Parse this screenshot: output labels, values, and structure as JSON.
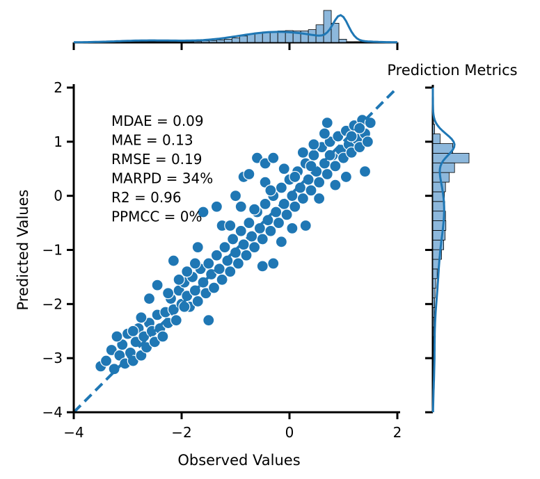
{
  "chart_data": {
    "type": "scatter",
    "title": "Prediction Metrics",
    "xlabel": "Observed Values",
    "ylabel": "Predicted Values",
    "xlim": [
      -4,
      2
    ],
    "ylim": [
      -4,
      2
    ],
    "xticks": [
      -4,
      -2,
      0,
      2
    ],
    "yticks": [
      -4,
      -3,
      -2,
      -1,
      0,
      1,
      2
    ],
    "xtick_labels": [
      "−4",
      "−2",
      "0",
      "2"
    ],
    "ytick_labels": [
      "−4",
      "−3",
      "−2",
      "−1",
      "0",
      "1",
      "2"
    ],
    "identity_line": {
      "from": [
        -4,
        -4
      ],
      "to": [
        2,
        2
      ],
      "style": "dashed"
    },
    "metrics": [
      "MDAE = 0.09",
      "MAE = 0.13",
      "RMSE = 0.19",
      "MARPD = 34%",
      "R2 = 0.96",
      "PPMCC = 0%"
    ],
    "colors": {
      "points": "#1f77b4",
      "hist_fill": "#8db8dc",
      "kde": "#1f77b4",
      "line": "#1f77b4"
    },
    "points": [
      [
        -3.5,
        -3.15
      ],
      [
        -3.4,
        -3.05
      ],
      [
        -3.3,
        -2.85
      ],
      [
        -3.25,
        -3.2
      ],
      [
        -3.15,
        -2.95
      ],
      [
        -3.1,
        -2.75
      ],
      [
        -3.05,
        -3.1
      ],
      [
        -3.0,
        -2.55
      ],
      [
        -2.95,
        -2.9
      ],
      [
        -2.9,
        -3.05
      ],
      [
        -2.85,
        -2.7
      ],
      [
        -2.8,
        -2.45
      ],
      [
        -2.75,
        -2.95
      ],
      [
        -2.7,
        -2.6
      ],
      [
        -2.65,
        -2.8
      ],
      [
        -2.6,
        -2.35
      ],
      [
        -2.55,
        -2.5
      ],
      [
        -2.5,
        -2.7
      ],
      [
        -2.45,
        -2.2
      ],
      [
        -2.4,
        -2.45
      ],
      [
        -2.35,
        -2.6
      ],
      [
        -2.3,
        -2.15
      ],
      [
        -2.25,
        -2.35
      ],
      [
        -2.2,
        -1.9
      ],
      [
        -2.15,
        -2.1
      ],
      [
        -2.1,
        -2.3
      ],
      [
        -2.05,
        -1.75
      ],
      [
        -2.0,
        -2.0
      ],
      [
        -1.95,
        -1.6
      ],
      [
        -1.9,
        -1.85
      ],
      [
        -1.85,
        -2.05
      ],
      [
        -1.8,
        -1.5
      ],
      [
        -1.75,
        -1.75
      ],
      [
        -1.7,
        -1.95
      ],
      [
        -1.65,
        -1.35
      ],
      [
        -1.6,
        -1.6
      ],
      [
        -1.55,
        -1.8
      ],
      [
        -1.5,
        -1.25
      ],
      [
        -1.45,
        -1.45
      ],
      [
        -1.4,
        -1.7
      ],
      [
        -1.35,
        -1.1
      ],
      [
        -1.3,
        -1.35
      ],
      [
        -1.25,
        -1.55
      ],
      [
        -1.2,
        -0.95
      ],
      [
        -1.15,
        -1.2
      ],
      [
        -1.1,
        -1.4
      ],
      [
        -1.05,
        -0.8
      ],
      [
        -1.0,
        -1.05
      ],
      [
        -0.95,
        -1.25
      ],
      [
        -0.9,
        -0.65
      ],
      [
        -0.85,
        -0.9
      ],
      [
        -0.8,
        -1.1
      ],
      [
        -0.75,
        -0.5
      ],
      [
        -0.7,
        -0.75
      ],
      [
        -0.65,
        -0.95
      ],
      [
        -0.6,
        -0.3
      ],
      [
        -0.55,
        -0.6
      ],
      [
        -0.5,
        -0.8
      ],
      [
        -0.45,
        -0.15
      ],
      [
        -0.4,
        -0.45
      ],
      [
        -0.35,
        -0.65
      ],
      [
        -0.3,
        0.0
      ],
      [
        -0.25,
        -0.3
      ],
      [
        -0.2,
        -0.5
      ],
      [
        -0.15,
        0.15
      ],
      [
        -0.1,
        -0.15
      ],
      [
        -0.05,
        -0.35
      ],
      [
        0.0,
        0.3
      ],
      [
        0.05,
        0.0
      ],
      [
        0.1,
        -0.2
      ],
      [
        0.15,
        0.45
      ],
      [
        0.2,
        0.15
      ],
      [
        0.25,
        -0.05
      ],
      [
        0.3,
        0.6
      ],
      [
        0.35,
        0.3
      ],
      [
        0.4,
        0.1
      ],
      [
        0.45,
        0.75
      ],
      [
        0.5,
        0.45
      ],
      [
        0.55,
        0.25
      ],
      [
        0.6,
        0.9
      ],
      [
        0.65,
        0.6
      ],
      [
        0.7,
        0.4
      ],
      [
        0.75,
        1.0
      ],
      [
        0.8,
        0.75
      ],
      [
        0.85,
        0.55
      ],
      [
        0.9,
        1.1
      ],
      [
        0.95,
        0.85
      ],
      [
        1.0,
        0.7
      ],
      [
        1.05,
        1.2
      ],
      [
        1.1,
        0.95
      ],
      [
        1.15,
        0.8
      ],
      [
        1.2,
        1.3
      ],
      [
        1.25,
        1.05
      ],
      [
        1.3,
        0.9
      ],
      [
        1.35,
        1.4
      ],
      [
        1.4,
        1.15
      ],
      [
        1.45,
        1.0
      ],
      [
        1.5,
        1.35
      ],
      [
        1.4,
        0.45
      ],
      [
        0.7,
        1.35
      ],
      [
        0.65,
        1.15
      ],
      [
        -0.6,
        0.7
      ],
      [
        -0.45,
        0.6
      ],
      [
        -0.3,
        0.7
      ],
      [
        -0.85,
        0.35
      ],
      [
        -1.0,
        0.0
      ],
      [
        -1.25,
        -0.55
      ],
      [
        -1.7,
        -0.95
      ],
      [
        -2.15,
        -1.2
      ],
      [
        -2.45,
        -1.65
      ],
      [
        -2.6,
        -1.9
      ],
      [
        -0.3,
        -1.25
      ],
      [
        -0.5,
        -1.3
      ],
      [
        -0.15,
        -0.85
      ],
      [
        0.05,
        -0.6
      ],
      [
        0.3,
        -0.55
      ],
      [
        0.55,
        -0.05
      ],
      [
        0.85,
        0.2
      ],
      [
        1.05,
        0.35
      ],
      [
        -2.9,
        -2.5
      ],
      [
        -3.2,
        -2.6
      ],
      [
        -1.5,
        -2.3
      ],
      [
        -1.95,
        -2.05
      ],
      [
        -2.75,
        -2.25
      ],
      [
        -0.75,
        0.4
      ],
      [
        -1.35,
        -0.2
      ],
      [
        -1.6,
        -0.3
      ],
      [
        0.25,
        0.8
      ],
      [
        0.45,
        0.95
      ],
      [
        -0.1,
        0.5
      ],
      [
        -0.45,
        0.25
      ],
      [
        -0.9,
        -0.2
      ],
      [
        -1.1,
        -0.55
      ],
      [
        -1.75,
        -1.25
      ],
      [
        -1.9,
        -1.4
      ],
      [
        -2.25,
        -1.8
      ],
      [
        -2.05,
        -1.55
      ],
      [
        -0.65,
        -0.25
      ],
      [
        -0.35,
        0.1
      ],
      [
        0.1,
        0.35
      ],
      [
        0.4,
        0.55
      ],
      [
        0.75,
        0.75
      ],
      [
        1.15,
        1.1
      ],
      [
        1.3,
        1.25
      ]
    ],
    "x_hist_density": [
      0.01,
      0.01,
      0.02,
      0.03,
      0.05,
      0.06,
      0.08,
      0.1,
      0.14,
      0.2,
      0.26,
      0.3,
      0.33,
      0.34,
      0.36,
      0.37,
      0.36,
      0.36,
      0.4,
      0.55,
      1.0,
      0.6,
      0.1,
      0.02
    ],
    "y_hist_density": [
      0.02,
      0.03,
      0.04,
      0.05,
      0.06,
      0.08,
      0.12,
      0.18,
      0.24,
      0.3,
      0.34,
      0.36,
      0.35,
      0.33,
      0.32,
      0.35,
      0.45,
      0.6,
      1.0,
      0.55,
      0.2,
      0.05,
      0.02
    ]
  }
}
